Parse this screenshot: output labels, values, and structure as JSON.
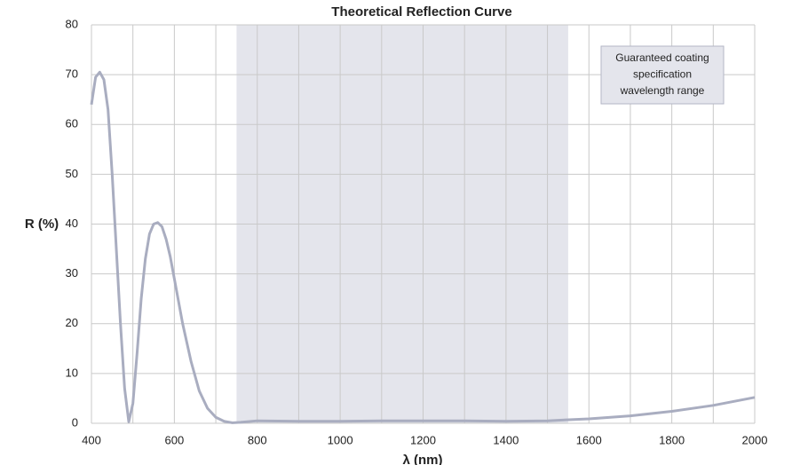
{
  "chart_data": {
    "type": "line",
    "title": "Theoretical Reflection Curve",
    "x_label": "λ (nm)",
    "y_label": "R (%)",
    "x": [
      400,
      410,
      420,
      430,
      440,
      450,
      460,
      470,
      480,
      490,
      500,
      510,
      520,
      530,
      540,
      550,
      560,
      570,
      580,
      590,
      600,
      620,
      640,
      660,
      680,
      700,
      720,
      740,
      760,
      800,
      900,
      1000,
      1100,
      1200,
      1300,
      1400,
      1500,
      1600,
      1700,
      1800,
      1900,
      2000
    ],
    "series": [
      {
        "name": "R",
        "color": "#a9adc0",
        "values": [
          64,
          69.5,
          70.5,
          69,
          63,
          50,
          35,
          20,
          7,
          0.3,
          4,
          14,
          25,
          33,
          38,
          40,
          40.3,
          39.5,
          37,
          33.5,
          29,
          20,
          12.5,
          6.5,
          3,
          1.2,
          0.4,
          0.1,
          0.2,
          0.5,
          0.4,
          0.4,
          0.5,
          0.5,
          0.5,
          0.4,
          0.5,
          0.9,
          1.5,
          2.4,
          3.6,
          5.2
        ]
      }
    ],
    "xlim": [
      400,
      2000
    ],
    "xticks": [
      400,
      600,
      800,
      1000,
      1200,
      1400,
      1600,
      1800,
      2000
    ],
    "x_minor_gridlines": [
      500,
      700,
      900,
      1100,
      1300,
      1500,
      1700,
      1900
    ],
    "ylim": [
      0,
      80
    ],
    "yticks": [
      0,
      10,
      20,
      30,
      40,
      50,
      60,
      70,
      80
    ],
    "grid": true,
    "shaded_range": {
      "x": [
        750,
        1550
      ],
      "color": "#e4e5ec",
      "annotation": [
        "Guaranteed coating",
        "specification",
        "wavelength range"
      ]
    }
  }
}
